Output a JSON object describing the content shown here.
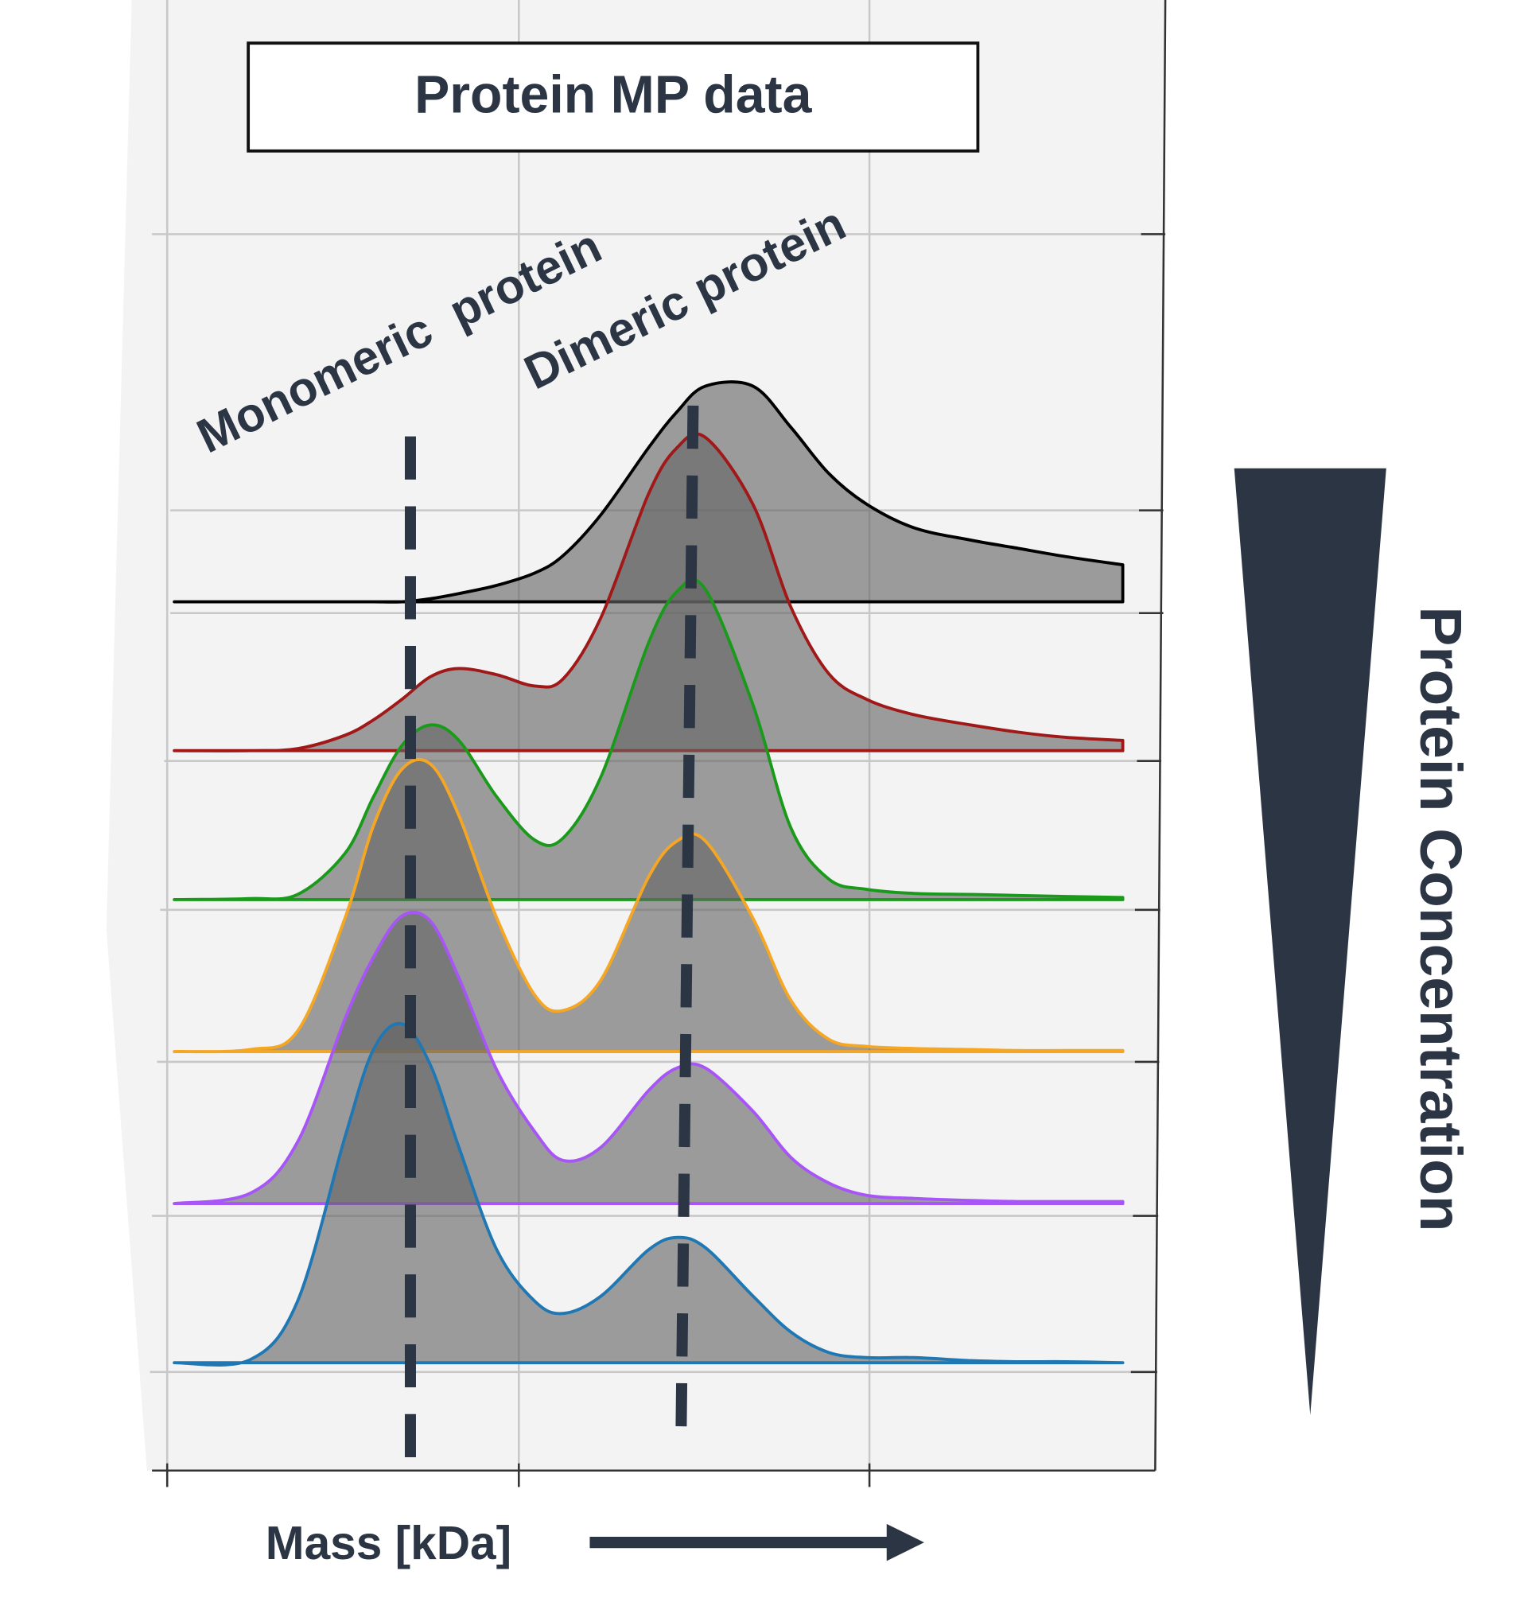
{
  "chart_data": {
    "type": "ridgeline",
    "title": "Protein MP data",
    "x_label": "Mass [kDa]",
    "y_label": "Protein Concentration",
    "annotations": [
      "Monomeric  protein",
      "Dimeric protein"
    ],
    "x": [
      0,
      8,
      13,
      18,
      21,
      24,
      27,
      30,
      34,
      38,
      41,
      45,
      50,
      53,
      56,
      61,
      65,
      69,
      73,
      78,
      84,
      89,
      94,
      100
    ],
    "xlim": [
      0,
      100
    ],
    "series": [
      {
        "color": "#000000",
        "values": [
          0,
          0,
          0,
          0,
          0,
          0,
          3,
          8,
          16,
          28,
          45,
          85,
          150,
          185,
          210,
          210,
          170,
          125,
          95,
          72,
          60,
          52,
          44,
          36
        ]
      },
      {
        "color": "#a01818",
        "values": [
          0,
          0,
          2,
          15,
          30,
          50,
          72,
          80,
          74,
          63,
          70,
          130,
          250,
          295,
          305,
          240,
          140,
          75,
          50,
          35,
          25,
          18,
          13,
          10
        ]
      },
      {
        "color": "#1a9a1a",
        "values": [
          0,
          1,
          5,
          45,
          100,
          150,
          170,
          155,
          100,
          58,
          60,
          120,
          250,
          300,
          302,
          190,
          70,
          20,
          10,
          6,
          5,
          4,
          3,
          2
        ]
      },
      {
        "color": "#f5a623",
        "values": [
          0,
          2,
          20,
          130,
          220,
          275,
          280,
          230,
          130,
          55,
          40,
          70,
          170,
          205,
          205,
          130,
          50,
          12,
          5,
          3,
          2,
          1,
          1,
          1
        ]
      },
      {
        "color": "#a855f7",
        "values": [
          0,
          10,
          60,
          180,
          240,
          280,
          275,
          220,
          130,
          70,
          42,
          55,
          110,
          132,
          132,
          90,
          45,
          20,
          8,
          5,
          3,
          2,
          2,
          2
        ]
      },
      {
        "color": "#1f77b4",
        "values": [
          0,
          3,
          60,
          220,
          305,
          330,
          290,
          210,
          110,
          60,
          48,
          65,
          110,
          122,
          112,
          65,
          30,
          10,
          5,
          5,
          2,
          1,
          1,
          0
        ]
      }
    ]
  }
}
